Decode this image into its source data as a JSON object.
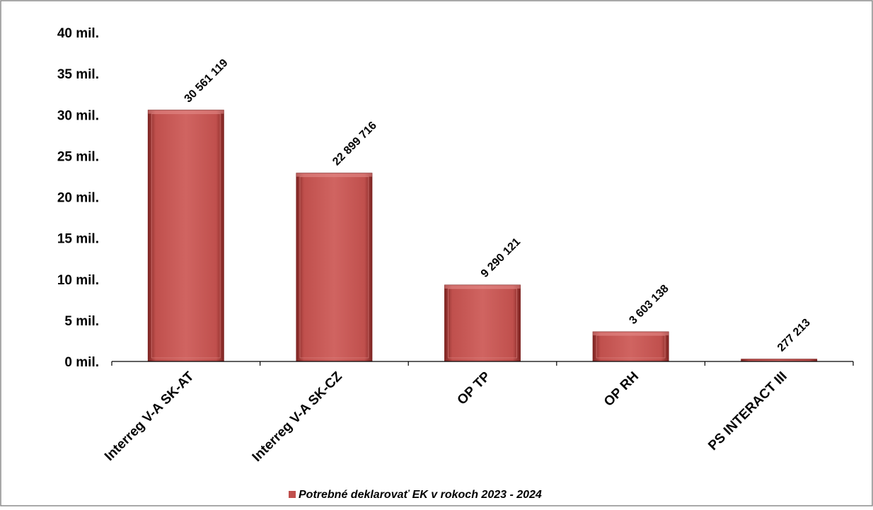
{
  "chart_data": {
    "type": "bar",
    "categories": [
      "Interreg V-A SK-AT",
      "Interreg V-A SK-CZ",
      "OP TP",
      "OP RH",
      "PS INTERACT III"
    ],
    "series": [
      {
        "name": "Potrebné deklarovať EK v rokoch 2023 - 2024",
        "values": [
          30561119,
          22899716,
          9290121,
          3603138,
          277213
        ],
        "value_labels": [
          "30 561 119",
          "22 899 716",
          "9 290 121",
          "3 603 138",
          "277 213"
        ],
        "color": "#c0504d"
      }
    ],
    "ylim": [
      0,
      40000000
    ],
    "yticks": [
      0,
      5000000,
      10000000,
      15000000,
      20000000,
      25000000,
      30000000,
      35000000,
      40000000
    ],
    "ytick_labels": [
      "0 mil.",
      "5 mil.",
      "10 mil.",
      "15 mil.",
      "20 mil.",
      "25 mil.",
      "30 mil.",
      "35 mil.",
      "40 mil."
    ],
    "grid": false,
    "legend_position": "bottom",
    "title": "",
    "xlabel": "",
    "ylabel": ""
  }
}
